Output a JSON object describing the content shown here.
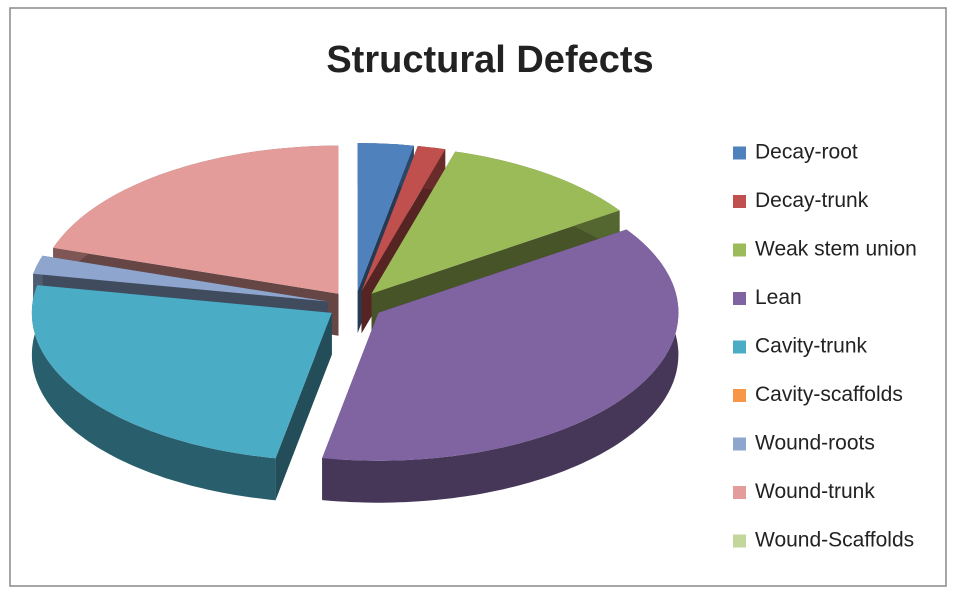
{
  "chart_data": {
    "type": "pie",
    "title": "Structural Defects",
    "categories": [
      "Decay-root",
      "Decay-trunk",
      "Weak stem union",
      "Lean",
      "Cavity-trunk",
      "Cavity-scaffolds",
      "Wound-roots",
      "Wound-trunk",
      "Wound-Scaffolds"
    ],
    "values": [
      3,
      1.5,
      11,
      37.5,
      25,
      0,
      2,
      20,
      0
    ],
    "colors": [
      "#4f81bd",
      "#c0504d",
      "#9bbb59",
      "#8064a2",
      "#4bacc6",
      "#f79646",
      "#8ea6ce",
      "#e39c9a",
      "#c3d69b"
    ],
    "legend": "right"
  }
}
